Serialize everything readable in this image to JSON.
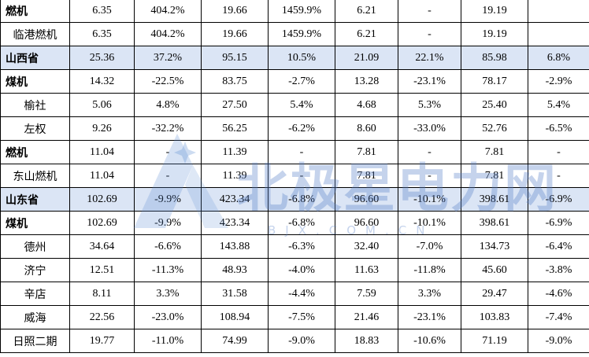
{
  "table": {
    "rows": [
      [
        "燃机",
        "6.35",
        "404.2%",
        "19.66",
        "1459.9%",
        "6.21",
        "-",
        "19.19"
      ],
      [
        "临港燃机",
        "6.35",
        "404.2%",
        "19.66",
        "1459.9%",
        "6.21",
        "-",
        "19.19"
      ],
      [
        "山西省",
        "25.36",
        "37.2%",
        "95.15",
        "10.5%",
        "21.09",
        "22.1%",
        "85.98",
        "6.8%"
      ],
      [
        "煤机",
        "14.32",
        "-22.5%",
        "83.75",
        "-2.7%",
        "13.28",
        "-23.1%",
        "78.17",
        "-2.9%"
      ],
      [
        "榆社",
        "5.06",
        "4.8%",
        "27.50",
        "5.4%",
        "4.68",
        "5.3%",
        "25.40",
        "5.4%"
      ],
      [
        "左权",
        "9.26",
        "-32.2%",
        "56.25",
        "-6.2%",
        "8.60",
        "-33.0%",
        "52.76",
        "-6.5%"
      ],
      [
        "燃机",
        "11.04",
        "-",
        "11.39",
        "-",
        "7.81",
        "-",
        "7.81",
        "-"
      ],
      [
        "东山燃机",
        "11.04",
        "-",
        "11.39",
        "-",
        "7.81",
        "-",
        "7.81",
        "-"
      ],
      [
        "山东省",
        "102.69",
        "-9.9%",
        "423.34",
        "-6.8%",
        "96.60",
        "-10.1%",
        "398.61",
        "-6.9%"
      ],
      [
        "煤机",
        "102.69",
        "-9.9%",
        "423.34",
        "-6.8%",
        "96.60",
        "-10.1%",
        "398.61",
        "-6.9%"
      ],
      [
        "德州",
        "34.64",
        "-6.6%",
        "143.88",
        "-6.3%",
        "32.40",
        "-7.0%",
        "134.73",
        "-6.4%"
      ],
      [
        "济宁",
        "12.51",
        "-11.3%",
        "48.93",
        "-4.0%",
        "11.63",
        "-11.8%",
        "45.60",
        "-3.8%"
      ],
      [
        "辛店",
        "8.11",
        "3.3%",
        "31.58",
        "-4.4%",
        "7.59",
        "3.3%",
        "29.47",
        "-4.6%"
      ],
      [
        "威海",
        "22.56",
        "-23.0%",
        "108.94",
        "-7.5%",
        "21.46",
        "-23.1%",
        "103.83",
        "-7.4%"
      ],
      [
        "日照二期",
        "19.77",
        "-11.0%",
        "74.99",
        "-9.0%",
        "18.83",
        "-10.6%",
        "71.19",
        "-9.0%"
      ]
    ]
  },
  "watermark": {
    "title": "北极星电力网",
    "url": "BJX.COM.CN"
  }
}
